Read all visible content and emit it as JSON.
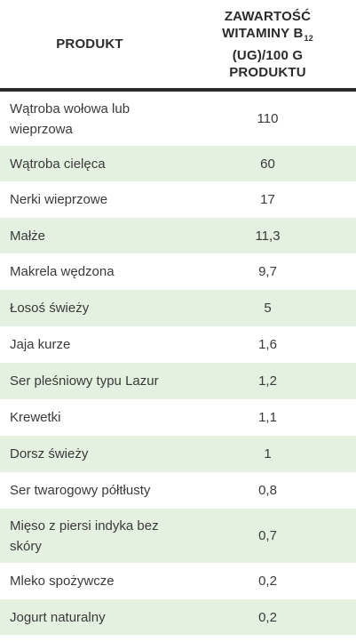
{
  "header": {
    "col_product": "PRODUKT",
    "col_value_line1": "ZAWARTOŚĆ",
    "col_value_line2": "WITAMINY B",
    "col_value_sub": "12",
    "col_value_line3": "(UG)/100 G",
    "col_value_line4": "PRODUKTU"
  },
  "rows": [
    {
      "product": "Wątroba wołowa lub wieprzowa",
      "value": "110"
    },
    {
      "product": "Wątroba cielęca",
      "value": "60"
    },
    {
      "product": "Nerki wieprzowe",
      "value": "17"
    },
    {
      "product": "Małże",
      "value": "11,3"
    },
    {
      "product": "Makrela wędzona",
      "value": "9,7"
    },
    {
      "product": "Łosoś świeży",
      "value": "5"
    },
    {
      "product": "Jaja kurze",
      "value": "1,6"
    },
    {
      "product": "Ser pleśniowy typu Lazur",
      "value": "1,2"
    },
    {
      "product": "Krewetki",
      "value": "1,1"
    },
    {
      "product": "Dorsz świeży",
      "value": "1"
    },
    {
      "product": "Ser twarogowy półtłusty",
      "value": "0,8"
    },
    {
      "product": "Mięso z piersi indyka bez skóry",
      "value": "0,7"
    },
    {
      "product": "Mleko spożywcze",
      "value": "0,2"
    },
    {
      "product": "Jogurt naturalny",
      "value": "0,2"
    }
  ],
  "colors": {
    "stripe": "#e4f0e0",
    "header_rule": "#2a2a2a",
    "text": "#3a3a3a"
  }
}
